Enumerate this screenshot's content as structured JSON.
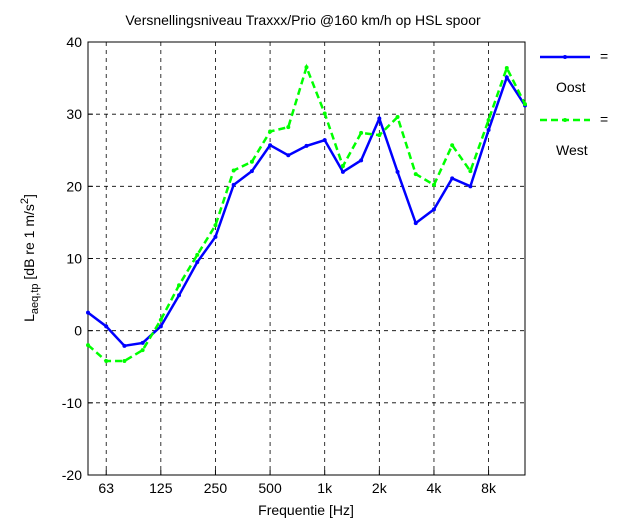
{
  "chart_data": {
    "type": "line",
    "title": "Versnellingsniveau Traxxx/Prio @160 km/h  op HSL spoor",
    "xlabel": "Frequentie [Hz]",
    "ylabel": {
      "main": "L",
      "sub": "aeq,tp",
      "rest": " [dB re 1 m/s",
      "sup": "2",
      "end": "]"
    },
    "categories": [
      null,
      "63",
      null,
      null,
      "125",
      null,
      null,
      "250",
      null,
      null,
      "500",
      null,
      null,
      "1k",
      null,
      null,
      "2k",
      null,
      null,
      "4k",
      null,
      null,
      "8k",
      null,
      null
    ],
    "ylim": [
      -20,
      40
    ],
    "yticks": [
      -20,
      -10,
      0,
      10,
      20,
      30,
      40
    ],
    "grid": true,
    "legend_separator": "=",
    "series": [
      {
        "name": "Oost",
        "color": "#0000ff",
        "dash": "solid",
        "values": [
          2.5,
          0.6,
          -2.1,
          -1.7,
          0.6,
          4.9,
          9.5,
          13.0,
          20.2,
          22.1,
          25.7,
          24.3,
          25.6,
          26.4,
          22.0,
          23.6,
          29.4,
          22.0,
          14.9,
          16.8,
          21.1,
          20.0,
          27.8,
          35.1,
          31.2
        ]
      },
      {
        "name": "West",
        "color": "#00ff00",
        "dash": "dashed",
        "values": [
          -2.0,
          -4.2,
          -4.2,
          -2.7,
          1.5,
          6.3,
          10.5,
          14.6,
          22.2,
          23.4,
          27.6,
          28.2,
          36.5,
          30.1,
          22.8,
          27.4,
          27.1,
          29.6,
          21.7,
          20.2,
          25.7,
          22.1,
          29.2,
          36.4,
          31.4
        ]
      }
    ]
  }
}
